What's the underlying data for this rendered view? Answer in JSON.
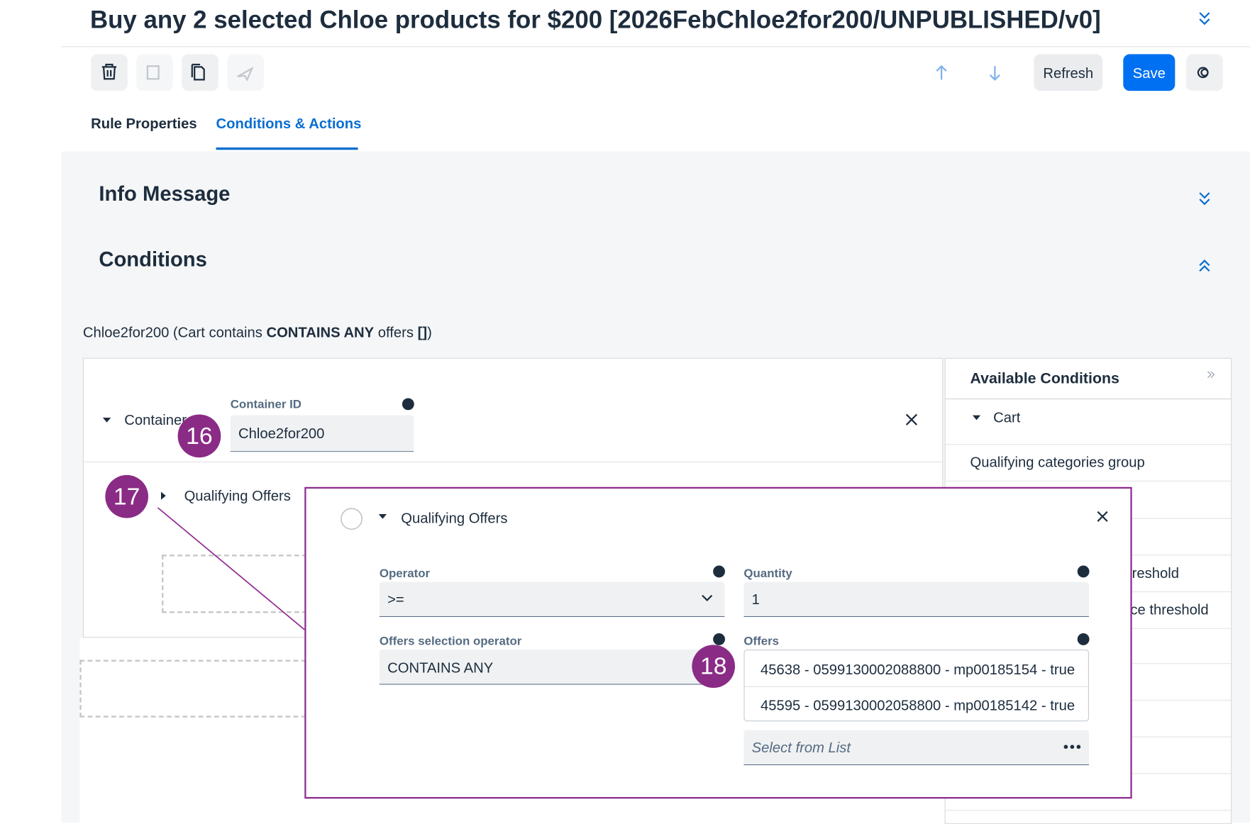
{
  "header": {
    "title": "Buy any 2 selected Chloe products for $200 [2026FebChloe2for200/UNPUBLISHED/v0]"
  },
  "toolbar": {
    "refresh": "Refresh",
    "save": "Save"
  },
  "tabs": [
    "Rule Properties",
    "Conditions & Actions"
  ],
  "sections": {
    "info_message": "Info Message",
    "conditions": "Conditions"
  },
  "summary": [
    "Chloe2for200 (Cart contains ",
    "CONTAINS ANY",
    " offers ",
    "[]",
    ")"
  ],
  "container": {
    "label": "Container",
    "id_label": "Container ID",
    "id_value": "Chloe2for200"
  },
  "tree": {
    "qualifying_offers": "Qualifying Offers"
  },
  "callouts": [
    "16",
    "17",
    "18"
  ],
  "popup": {
    "title": "Qualifying Offers",
    "operator_label": "Operator",
    "operator_value": ">=",
    "quantity_label": "Quantity",
    "quantity_value": "1",
    "offers_selection_label": "Offers selection operator",
    "offers_selection_value": "CONTAINS ANY",
    "offers_label": "Offers",
    "offers": [
      "45638 - 0599130002088800 - mp00185154 - true",
      "45595 - 0599130002058800 - mp00185142 - true"
    ],
    "placeholder": "Select from List"
  },
  "available": {
    "title": "Available Conditions",
    "items": [
      "Cart",
      "Qualifying categories group",
      "reshold",
      "ce threshold"
    ]
  }
}
